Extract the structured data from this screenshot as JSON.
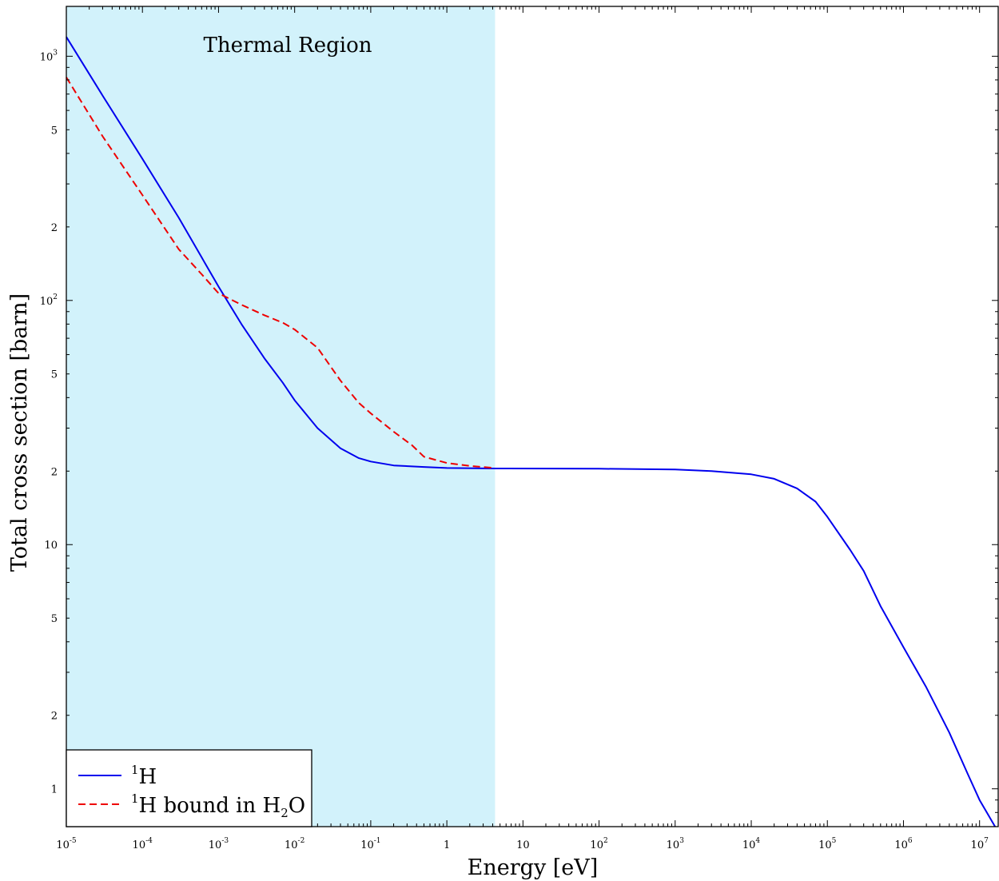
{
  "chart_data": {
    "type": "line",
    "title": "",
    "xlabel": "Energy [eV]",
    "ylabel": "Total cross section [barn]",
    "xscale": "log",
    "yscale": "log",
    "xlim": [
      1e-05,
      18000000.0
    ],
    "ylim": [
      0.7,
      1600
    ],
    "grid": false,
    "legend_position": "bottom-left",
    "x_tick_labels": [
      {
        "value": 1e-05,
        "base": "10",
        "exp": "-5"
      },
      {
        "value": 0.0001,
        "base": "10",
        "exp": "-4"
      },
      {
        "value": 0.001,
        "base": "10",
        "exp": "-3"
      },
      {
        "value": 0.01,
        "base": "10",
        "exp": "-2"
      },
      {
        "value": 0.1,
        "base": "10",
        "exp": "-1"
      },
      {
        "value": 1,
        "base": "1",
        "exp": ""
      },
      {
        "value": 10,
        "base": "10",
        "exp": ""
      },
      {
        "value": 100,
        "base": "10",
        "exp": "2"
      },
      {
        "value": 1000,
        "base": "10",
        "exp": "3"
      },
      {
        "value": 10000,
        "base": "10",
        "exp": "4"
      },
      {
        "value": 100000,
        "base": "10",
        "exp": "5"
      },
      {
        "value": 1000000,
        "base": "10",
        "exp": "6"
      },
      {
        "value": 10000000,
        "base": "10",
        "exp": "7"
      }
    ],
    "y_tick_labels": [
      {
        "value": 1,
        "base": "1",
        "exp": ""
      },
      {
        "value": 2,
        "base": "2",
        "exp": ""
      },
      {
        "value": 5,
        "base": "5",
        "exp": ""
      },
      {
        "value": 10,
        "base": "10",
        "exp": ""
      },
      {
        "value": 20,
        "base": "2",
        "exp": ""
      },
      {
        "value": 50,
        "base": "5",
        "exp": ""
      },
      {
        "value": 100,
        "base": "10",
        "exp": "2"
      },
      {
        "value": 200,
        "base": "2",
        "exp": ""
      },
      {
        "value": 500,
        "base": "5",
        "exp": ""
      },
      {
        "value": 1000,
        "base": "10",
        "exp": "3"
      }
    ],
    "shaded_region": {
      "label": "Thermal Region",
      "x_range": [
        1e-05,
        4.3
      ],
      "color": "#d2f2fb"
    },
    "series": [
      {
        "name": "¹H",
        "legend": {
          "sup": "1",
          "text": "H"
        },
        "color": "#0000ee",
        "style": "solid",
        "points": [
          [
            1e-05,
            1200
          ],
          [
            3e-05,
            690
          ],
          [
            0.0001,
            380
          ],
          [
            0.0003,
            218
          ],
          [
            0.001,
            114
          ],
          [
            0.002,
            80
          ],
          [
            0.004,
            58
          ],
          [
            0.007,
            46
          ],
          [
            0.01,
            39
          ],
          [
            0.02,
            30
          ],
          [
            0.04,
            24.8
          ],
          [
            0.07,
            22.6
          ],
          [
            0.1,
            21.9
          ],
          [
            0.2,
            21.1
          ],
          [
            0.5,
            20.8
          ],
          [
            1,
            20.6
          ],
          [
            4.3,
            20.5
          ],
          [
            100,
            20.45
          ],
          [
            1000,
            20.3
          ],
          [
            3000,
            20.0
          ],
          [
            10000,
            19.4
          ],
          [
            20000,
            18.6
          ],
          [
            40000,
            17.0
          ],
          [
            70000,
            15.0
          ],
          [
            100000,
            13.0
          ],
          [
            200000,
            9.5
          ],
          [
            300000,
            7.8
          ],
          [
            500000,
            5.6
          ],
          [
            1000000,
            3.8
          ],
          [
            2000000,
            2.6
          ],
          [
            4000000,
            1.7
          ],
          [
            7000000,
            1.15
          ],
          [
            10000000,
            0.9
          ],
          [
            16000000,
            0.7
          ]
        ]
      },
      {
        "name": "¹H bound in H₂O",
        "legend": {
          "sup": "1",
          "text": "H bound in H",
          "sub": "2",
          "tail": "O"
        },
        "color": "#ee0000",
        "style": "dashed",
        "points": [
          [
            1e-05,
            820
          ],
          [
            3e-05,
            470
          ],
          [
            0.0001,
            270
          ],
          [
            0.0003,
            162
          ],
          [
            0.0006,
            128
          ],
          [
            0.001,
            107
          ],
          [
            0.002,
            96
          ],
          [
            0.004,
            87
          ],
          [
            0.007,
            81
          ],
          [
            0.01,
            76
          ],
          [
            0.02,
            64
          ],
          [
            0.04,
            47
          ],
          [
            0.07,
            38
          ],
          [
            0.1,
            34.5
          ],
          [
            0.2,
            29
          ],
          [
            0.35,
            25.5
          ],
          [
            0.5,
            22.9
          ],
          [
            1,
            21.6
          ],
          [
            2,
            21.0
          ],
          [
            4.3,
            20.6
          ]
        ]
      }
    ]
  }
}
